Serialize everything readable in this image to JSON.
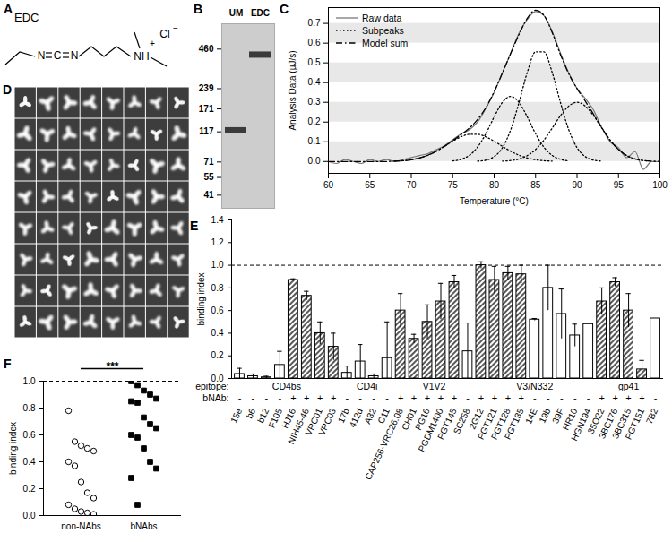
{
  "panel_a": {
    "panel_label": "A",
    "title": "EDC",
    "structure_text": [
      "N",
      "C",
      "N",
      "+",
      "NH",
      "Cl",
      "−"
    ]
  },
  "panel_d": {
    "panel_label": "D"
  },
  "chart_data": [
    {
      "panel_label": "B",
      "type": "gel",
      "categories": [
        "UM",
        "EDC"
      ],
      "values": [
        120,
        420
      ],
      "log": "y",
      "ylim": [
        33,
        700
      ],
      "yticks": [
        460,
        239,
        171,
        117,
        71,
        55,
        41
      ]
    },
    {
      "panel_label": "C",
      "type": "line",
      "x_label": "Temperature (°C)",
      "y_label": "Analysis Data (μJ/s)",
      "x": [
        60,
        61,
        62,
        63,
        64,
        65,
        66,
        67,
        68,
        69,
        70,
        71,
        72,
        73,
        74,
        75,
        76,
        77,
        78,
        79,
        80,
        81,
        82,
        83,
        84,
        85,
        86,
        87,
        88,
        89,
        90,
        91,
        92,
        93,
        94,
        95,
        96,
        97,
        98,
        99,
        100
      ],
      "xlim": [
        60,
        100
      ],
      "xticks": [
        60,
        65,
        70,
        75,
        80,
        85,
        90,
        95,
        100
      ],
      "ylim": [
        -0.06,
        0.78
      ],
      "yticks": [
        {
          "value": 0,
          "label": "0.0"
        },
        0.1,
        0.2,
        0.3,
        0.4,
        0.5,
        0.6,
        0.7
      ],
      "grid": true,
      "legend": "top-left",
      "series": [
        {
          "name": "Raw data",
          "color": "#777777",
          "line_style": "solid",
          "values": [
            0.0,
            -0.01,
            0.01,
            0.0,
            -0.01,
            0.01,
            0.0,
            0.01,
            0.0,
            0.01,
            0.02,
            0.03,
            0.04,
            0.06,
            0.08,
            0.11,
            0.14,
            0.16,
            0.2,
            0.27,
            0.35,
            0.45,
            0.55,
            0.65,
            0.72,
            0.76,
            0.74,
            0.66,
            0.55,
            0.45,
            0.37,
            0.32,
            0.26,
            0.17,
            0.1,
            0.07,
            0.02,
            0.05,
            -0.04,
            0.0,
            0.0
          ]
        },
        {
          "name": "Subpeaks",
          "color": "#000000",
          "line_style": "dotted",
          "curves": [
            [
              null,
              null,
              null,
              null,
              null,
              null,
              null,
              null,
              0.002,
              0.004,
              0.009,
              0.018,
              0.032,
              0.052,
              0.077,
              0.103,
              0.125,
              0.138,
              0.138,
              0.125,
              0.103,
              0.077,
              0.052,
              0.032,
              0.018,
              0.009,
              0.004,
              0.002,
              null,
              null,
              null,
              null,
              null,
              null,
              null,
              null,
              null,
              null,
              null,
              null,
              null
            ],
            [
              null,
              null,
              null,
              null,
              null,
              null,
              null,
              null,
              null,
              null,
              null,
              null,
              null,
              null,
              null,
              0.003,
              0.011,
              0.031,
              0.073,
              0.141,
              0.226,
              0.3,
              0.33,
              0.3,
              0.226,
              0.141,
              0.073,
              0.031,
              0.011,
              0.003,
              null,
              null,
              null,
              null,
              null,
              null,
              null,
              null,
              null,
              null,
              null
            ],
            [
              null,
              null,
              null,
              null,
              null,
              null,
              null,
              null,
              null,
              null,
              null,
              null,
              null,
              null,
              null,
              null,
              null,
              null,
              0.002,
              0.007,
              0.025,
              0.07,
              0.161,
              0.299,
              0.452,
              0.556,
              0.556,
              0.452,
              0.299,
              0.161,
              0.07,
              0.025,
              0.007,
              0.002,
              null,
              null,
              null,
              null,
              null,
              null,
              null
            ],
            [
              null,
              null,
              null,
              null,
              null,
              null,
              null,
              null,
              null,
              null,
              null,
              null,
              null,
              null,
              null,
              null,
              null,
              null,
              null,
              null,
              null,
              0.002,
              0.005,
              0.013,
              0.03,
              0.061,
              0.108,
              0.169,
              0.232,
              0.281,
              0.3,
              0.281,
              0.232,
              0.169,
              0.108,
              0.061,
              0.03,
              0.013,
              0.005,
              0.002,
              null
            ]
          ]
        },
        {
          "name": "Model sum",
          "color": "#000000",
          "line_style": "dashdot",
          "values": [
            0,
            0,
            0,
            0,
            0,
            0,
            0,
            0,
            0.002,
            0.004,
            0.009,
            0.018,
            0.032,
            0.052,
            0.077,
            0.106,
            0.136,
            0.169,
            0.213,
            0.273,
            0.354,
            0.449,
            0.548,
            0.644,
            0.726,
            0.767,
            0.741,
            0.654,
            0.542,
            0.445,
            0.37,
            0.306,
            0.239,
            0.171,
            0.108,
            0.061,
            0.03,
            0.013,
            0.005,
            0.002,
            0
          ]
        }
      ]
    },
    {
      "panel_label": "E",
      "type": "bar",
      "y_label": "binding index",
      "color": "#000000",
      "categories": [
        "15e",
        "b6",
        "b12",
        "F105",
        "HJ16",
        "NIH45-46",
        "VRC01",
        "VRC03",
        "17b",
        "412d",
        "A32",
        "C11",
        "CAP256-VRC26.08",
        "CH01",
        "PG16",
        "PGDM1400",
        "PGT145",
        "SC258",
        "2G12",
        "PGT121",
        "PGT128",
        "PGT135",
        "14E",
        "19b",
        "39F",
        "HR10",
        "HGN194",
        "35O22",
        "3BC176",
        "3BC315",
        "PGT151",
        "7B2"
      ],
      "epitopes": [
        "CD4bs",
        "CD4bs",
        "CD4bs",
        "CD4bs",
        "CD4bs",
        "CD4bs",
        "CD4bs",
        "CD4bs",
        "CD4i",
        "CD4i",
        "CD4i",
        "CD4i",
        "V1V2",
        "V1V2",
        "V1V2",
        "V1V2",
        "V1V2",
        "V1V2",
        "V3/N332",
        "V3/N332",
        "V3/N332",
        "V3/N332",
        "V3/N332",
        "V3/N332",
        "V3/N332",
        "V3/N332",
        "V3/N332",
        "gp41",
        "gp41",
        "gp41",
        "gp41",
        "gp41"
      ],
      "bnab": [
        "-",
        "-",
        "-",
        "-",
        "+",
        "+",
        "+",
        "+",
        "-",
        "-",
        "-",
        "-",
        "+",
        "+",
        "+",
        "+",
        "+",
        "-",
        "+",
        "+",
        "+",
        "+",
        "-",
        "-",
        "-",
        "-",
        "-",
        "+",
        "+",
        "+",
        "+",
        "-"
      ],
      "values": [
        0.04,
        0.02,
        0.01,
        0.12,
        0.87,
        0.73,
        0.4,
        0.28,
        0.05,
        0.15,
        0.02,
        0.18,
        0.6,
        0.35,
        0.5,
        0.68,
        0.85,
        0.24,
        1.0,
        0.87,
        0.93,
        0.92,
        0.52,
        0.8,
        0.57,
        0.38,
        0.48,
        0.68,
        0.85,
        0.6,
        0.08,
        0.53
      ],
      "errors": [
        0.05,
        0.02,
        0.01,
        0.12,
        0.01,
        0.04,
        0.1,
        0.12,
        0.06,
        0.15,
        0.02,
        0.32,
        0.15,
        0.04,
        0.15,
        0.16,
        0.06,
        0.25,
        0.03,
        0.12,
        0.06,
        0.08,
        0.01,
        0.2,
        0.22,
        0.1,
        null,
        0.12,
        0.04,
        0.15,
        0.08,
        null
      ],
      "ylim": [
        0,
        1.4
      ],
      "yticks": [
        {
          "value": 0,
          "label": "0.0"
        },
        0.2,
        0.4,
        0.6,
        0.8,
        {
          "value": 1,
          "label": "1.0"
        },
        1.2,
        1.4
      ],
      "reference_line": 1,
      "epitope_label": "epitope:",
      "bnab_label": "bNAb:"
    },
    {
      "panel_label": "F",
      "type": "scatter",
      "y_label": "binding index",
      "series": [
        {
          "name": "non-NAbs",
          "marker": "circle-open",
          "color": "#000000",
          "values": [
            0.78,
            0.55,
            0.52,
            0.5,
            0.48,
            0.4,
            0.37,
            0.25,
            0.17,
            0.13,
            0.08,
            0.05,
            0.03,
            0.02,
            0.01
          ]
        },
        {
          "name": "bNAbs",
          "marker": "square",
          "color": "#000000",
          "values": [
            1.0,
            0.97,
            0.93,
            0.9,
            0.87,
            0.85,
            0.84,
            0.73,
            0.68,
            0.65,
            0.6,
            0.58,
            0.5,
            0.4,
            0.35,
            0.28,
            0.08
          ]
        }
      ],
      "ylim": [
        0,
        1
      ],
      "yticks": [
        {
          "value": 0,
          "label": "0.0"
        },
        0.2,
        0.4,
        0.6,
        0.8,
        {
          "value": 1,
          "label": "1.0"
        }
      ],
      "reference_line": 1,
      "significance": {
        "label": "***",
        "between": [
          "non-NAbs",
          "bNAbs"
        ]
      }
    }
  ]
}
